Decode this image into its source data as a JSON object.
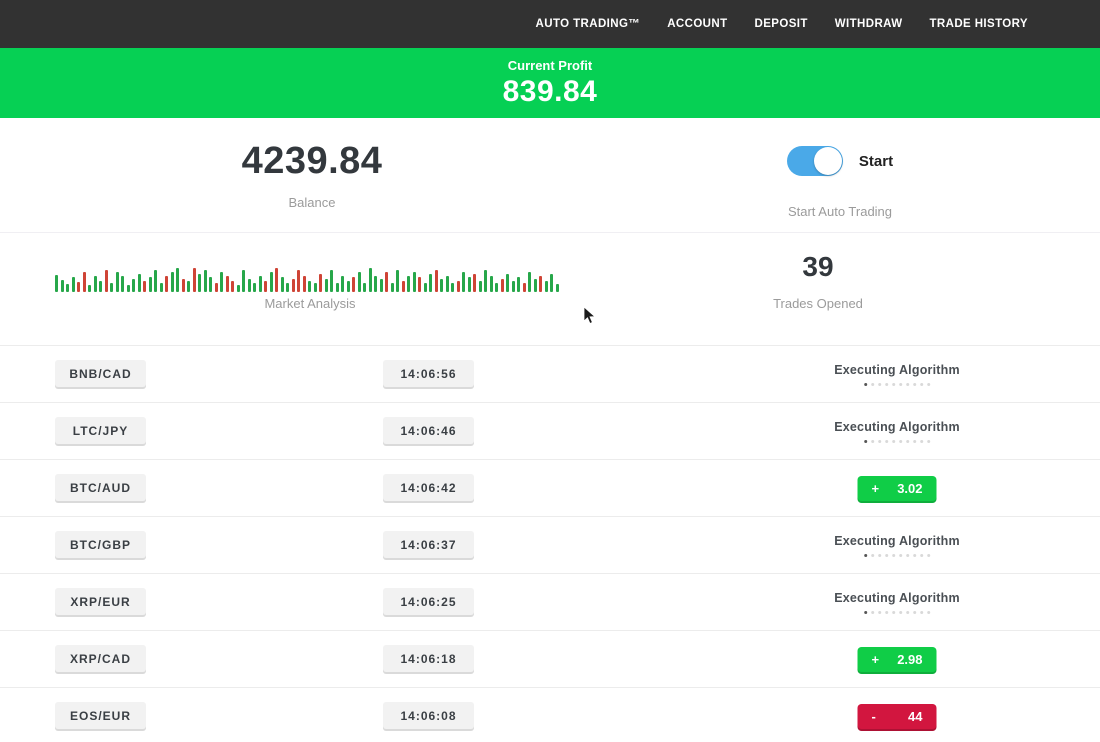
{
  "nav": {
    "items": [
      {
        "label": "AUTO TRADING™"
      },
      {
        "label": "ACCOUNT"
      },
      {
        "label": "DEPOSIT"
      },
      {
        "label": "WITHDRAW"
      },
      {
        "label": "TRADE HISTORY"
      }
    ]
  },
  "profit_banner": {
    "label": "Current Profit",
    "value": "839.84"
  },
  "stats": {
    "balance": {
      "value": "4239.84",
      "label": "Balance"
    },
    "auto_trading": {
      "toggle_label": "Start",
      "label": "Start Auto Trading",
      "toggle_on": true
    }
  },
  "market": {
    "label": "Market Analysis",
    "trades_opened": {
      "value": "39",
      "label": "Trades Opened"
    }
  },
  "chart_data": {
    "type": "bar",
    "title": "Market Analysis",
    "note": "mini price-tick bar strip; g=green up tick, r=red down tick, number=relative height px (max 33)",
    "bars": [
      "g17",
      "g12",
      "g8",
      "g15",
      "r10",
      "r20",
      "g7",
      "g16",
      "g11",
      "r22",
      "g9",
      "g20",
      "g16",
      "g7",
      "g13",
      "g18",
      "r11",
      "g15",
      "g22",
      "g9",
      "r16",
      "g20",
      "g24",
      "r13",
      "g11",
      "r24",
      "g18",
      "g22",
      "g15",
      "r9",
      "g20",
      "r16",
      "r11",
      "g7",
      "g22",
      "g13",
      "g9",
      "g16",
      "r11",
      "g20",
      "r24",
      "g15",
      "g9",
      "r13",
      "r22",
      "r16",
      "g11",
      "g9",
      "r18",
      "g13",
      "g22",
      "g9",
      "g16",
      "g11",
      "r15",
      "g20",
      "g9",
      "g24",
      "g16",
      "g13",
      "r20",
      "g9",
      "g22",
      "r11",
      "g16",
      "g20",
      "r15",
      "g9",
      "g18",
      "r22",
      "g13",
      "g16",
      "g9",
      "r11",
      "g20",
      "g15",
      "r18",
      "g11",
      "g22",
      "g16",
      "g9",
      "r13",
      "g18",
      "g11",
      "g15",
      "r9",
      "g20",
      "g13",
      "r16",
      "g11",
      "g18",
      "g8"
    ]
  },
  "trades": {
    "executing_label": "Executing Algorithm",
    "executing_dot_count": 10,
    "rows": [
      {
        "pair": "BNB/CAD",
        "time": "14:06:56",
        "status": "executing",
        "result_sign": "",
        "result_value": ""
      },
      {
        "pair": "LTC/JPY",
        "time": "14:06:46",
        "status": "executing",
        "result_sign": "",
        "result_value": ""
      },
      {
        "pair": "BTC/AUD",
        "time": "14:06:42",
        "status": "profit",
        "result_sign": "+",
        "result_value": "3.02"
      },
      {
        "pair": "BTC/GBP",
        "time": "14:06:37",
        "status": "executing",
        "result_sign": "",
        "result_value": ""
      },
      {
        "pair": "XRP/EUR",
        "time": "14:06:25",
        "status": "executing",
        "result_sign": "",
        "result_value": ""
      },
      {
        "pair": "XRP/CAD",
        "time": "14:06:18",
        "status": "profit",
        "result_sign": "+",
        "result_value": "2.98"
      },
      {
        "pair": "EOS/EUR",
        "time": "14:06:08",
        "status": "loss",
        "result_sign": "-",
        "result_value": "44"
      }
    ]
  },
  "colors": {
    "nav_bg": "#323232",
    "banner_green": "#06d054",
    "profit_badge_green": "#10cd47",
    "loss_badge_red": "#d2163f",
    "toggle_blue": "#4aa9e8",
    "bar_green": "#27a74a",
    "bar_red": "#cf4436"
  }
}
